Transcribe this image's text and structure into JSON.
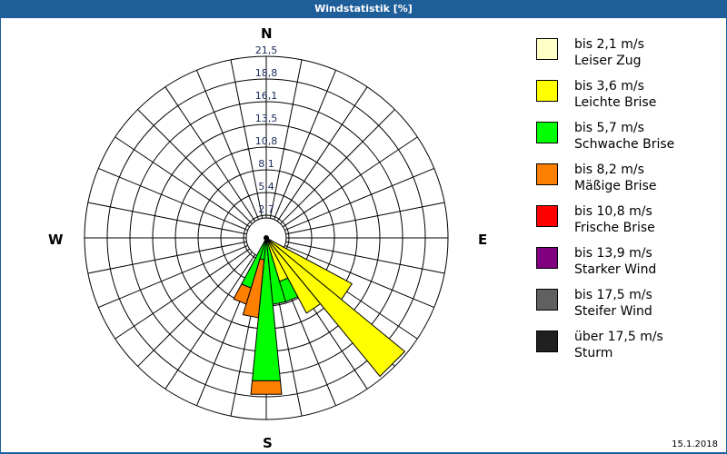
{
  "window": {
    "title": "Windstatistik [%]",
    "title_bg": "#1f5f99",
    "date": "15.1.2018"
  },
  "compass": {
    "n": "N",
    "e": "E",
    "s": "S",
    "w": "W"
  },
  "legend": [
    {
      "range": "bis 2,1 m/s",
      "name": "Leiser Zug",
      "color": "#ffffc8"
    },
    {
      "range": "bis 3,6 m/s",
      "name": "Leichte Brise",
      "color": "#ffff00"
    },
    {
      "range": "bis 5,7 m/s",
      "name": "Schwache Brise",
      "color": "#00ff00"
    },
    {
      "range": "bis 8,2 m/s",
      "name": "Mäßige Brise",
      "color": "#ff8000"
    },
    {
      "range": "bis 10,8 m/s",
      "name": "Frische Brise",
      "color": "#ff0000"
    },
    {
      "range": "bis 13,9 m/s",
      "name": "Starker Wind",
      "color": "#800080"
    },
    {
      "range": "bis 17,5 m/s",
      "name": "Steifer Wind",
      "color": "#606060"
    },
    {
      "range": "über 17,5 m/s",
      "name": "Sturm",
      "color": "#202020"
    }
  ],
  "chart_data": {
    "type": "wind-rose (polar stacked bar)",
    "title": "Windstatistik [%]",
    "radial_ticks": [
      "2,7",
      "5,4",
      "8,1",
      "10,8",
      "13,5",
      "16,1",
      "18,8",
      "21,5"
    ],
    "radial_max": 21.5,
    "directions_count": 32,
    "sector_width_deg": 11.25,
    "series_names": [
      "bis 2,1 m/s",
      "bis 3,6 m/s",
      "bis 5,7 m/s",
      "bis 8,2 m/s",
      "bis 10,8 m/s",
      "bis 13,9 m/s",
      "bis 17,5 m/s",
      "über 17,5 m/s"
    ],
    "bars": [
      {
        "bearing": 123.75,
        "segments": [
          {
            "class": 1,
            "cumulative": 11.5
          }
        ]
      },
      {
        "bearing": 135.0,
        "segments": [
          {
            "class": 1,
            "cumulative": 21.2
          }
        ]
      },
      {
        "bearing": 146.25,
        "segments": [
          {
            "class": 1,
            "cumulative": 10.1
          }
        ]
      },
      {
        "bearing": 157.5,
        "segments": [
          {
            "class": 1,
            "cumulative": 5.4
          },
          {
            "class": 2,
            "cumulative": 7.9
          }
        ]
      },
      {
        "bearing": 168.75,
        "segments": [
          {
            "class": 2,
            "cumulative": 7.9
          }
        ]
      },
      {
        "bearing": 180.0,
        "segments": [
          {
            "class": 2,
            "cumulative": 17.0
          },
          {
            "class": 3,
            "cumulative": 18.6
          }
        ]
      },
      {
        "bearing": 191.25,
        "segments": [
          {
            "class": 2,
            "cumulative": 2.6
          },
          {
            "class": 3,
            "cumulative": 9.5
          }
        ]
      },
      {
        "bearing": 202.5,
        "segments": [
          {
            "class": 2,
            "cumulative": 6.2
          },
          {
            "class": 3,
            "cumulative": 8.2
          }
        ]
      }
    ],
    "legend_position": "right",
    "grid": true
  }
}
